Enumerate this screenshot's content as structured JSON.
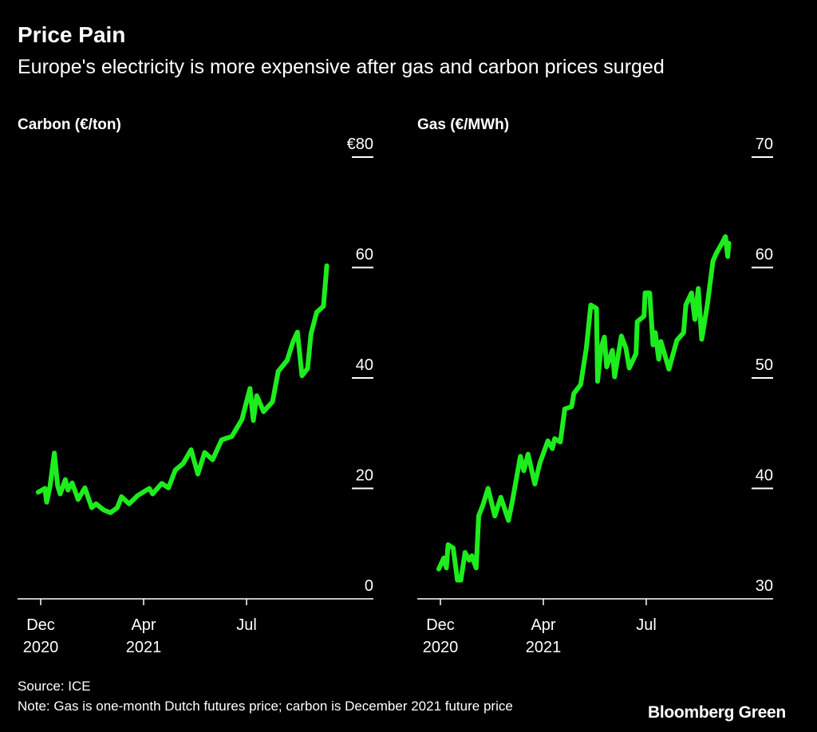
{
  "header": {
    "title": "Price Pain",
    "subtitle": "Europe's electricity is more expensive after gas and carbon prices surged"
  },
  "footer": {
    "source": "Source: ICE",
    "note": "Note: Gas is one-month Dutch futures price; carbon is December 2021 future price",
    "brand": "Bloomberg Green"
  },
  "colors": {
    "line": "#1ded1d",
    "background": "#000000",
    "text": "#ffffff"
  },
  "chart_data": [
    {
      "type": "line",
      "title": "Carbon (€/ton)",
      "ylim": [
        0,
        80
      ],
      "yticks": [
        0,
        20,
        40,
        60,
        80
      ],
      "ytick_labels": [
        "0",
        "20",
        "40",
        "60",
        "€80"
      ],
      "xticks": [
        {
          "date": "2020-12-01",
          "label1": "Dec",
          "label2": "2020"
        },
        {
          "date": "2021-04-01",
          "label1": "Apr",
          "label2": "2021"
        },
        {
          "date": "2021-07-01",
          "label1": "Jul",
          "label2": ""
        }
      ],
      "grid": false,
      "y_axis_side": "right",
      "series": [
        {
          "x": [
            "2020-11-28",
            "2020-12-06",
            "2020-12-08",
            "2020-12-12",
            "2020-12-17",
            "2020-12-21",
            "2020-12-24",
            "2020-12-30",
            "2021-01-02",
            "2021-01-07",
            "2021-01-14",
            "2021-01-22",
            "2021-01-30",
            "2021-02-04",
            "2021-02-13",
            "2021-02-21",
            "2021-03-01",
            "2021-03-06",
            "2021-03-15",
            "2021-03-25",
            "2021-04-06",
            "2021-04-09",
            "2021-04-17",
            "2021-04-23",
            "2021-04-29",
            "2021-05-06",
            "2021-05-13",
            "2021-05-19",
            "2021-05-25",
            "2021-06-01",
            "2021-06-09",
            "2021-06-18",
            "2021-06-27",
            "2021-07-04",
            "2021-07-07",
            "2021-07-10",
            "2021-07-16",
            "2021-07-24",
            "2021-07-29",
            "2021-08-06",
            "2021-08-11",
            "2021-08-15",
            "2021-08-19",
            "2021-08-24",
            "2021-08-27",
            "2021-09-01",
            "2021-09-07",
            "2021-09-10"
          ],
          "y": [
            19.3,
            20,
            17.5,
            20.4,
            26.4,
            20.4,
            19,
            21.6,
            19.7,
            21,
            18,
            20.1,
            16.5,
            17.2,
            16.1,
            15.6,
            16.5,
            18.5,
            17.2,
            18.7,
            20,
            19,
            20.9,
            20.1,
            23.3,
            24.5,
            27,
            22.6,
            26.5,
            25.2,
            28.8,
            29.4,
            32.5,
            38.1,
            32.3,
            36.8,
            33.9,
            35.7,
            41.2,
            43.2,
            46.5,
            48.3,
            40.4,
            41.7,
            48,
            51.9,
            53,
            60.3
          ]
        }
      ]
    },
    {
      "type": "line",
      "title": "Gas (€/MWh)",
      "ylim": [
        30,
        70
      ],
      "yticks": [
        30,
        40,
        50,
        60,
        70
      ],
      "ytick_labels": [
        "30",
        "40",
        "50",
        "60",
        "70"
      ],
      "xticks": [
        {
          "date": "2020-12-01",
          "label1": "Dec",
          "label2": "2020"
        },
        {
          "date": "2021-04-01",
          "label1": "Apr",
          "label2": "2021"
        },
        {
          "date": "2021-07-01",
          "label1": "Jul",
          "label2": ""
        }
      ],
      "grid": false,
      "y_axis_side": "right",
      "series": [
        {
          "x": [
            "2020-11-29",
            "2020-12-05",
            "2020-12-08",
            "2020-12-10",
            "2020-12-16",
            "2020-12-21",
            "2020-12-25",
            "2020-12-30",
            "2021-01-04",
            "2021-01-07",
            "2021-01-12",
            "2021-01-15",
            "2021-01-20",
            "2021-01-26",
            "2021-02-03",
            "2021-02-10",
            "2021-02-19",
            "2021-02-24",
            "2021-03-05",
            "2021-03-09",
            "2021-03-14",
            "2021-03-22",
            "2021-03-28",
            "2021-04-05",
            "2021-04-09",
            "2021-04-11",
            "2021-04-16",
            "2021-04-20",
            "2021-04-26",
            "2021-04-28",
            "2021-05-04",
            "2021-05-09",
            "2021-05-13",
            "2021-05-18",
            "2021-05-19",
            "2021-05-22",
            "2021-05-25",
            "2021-05-27",
            "2021-06-01",
            "2021-06-03",
            "2021-06-09",
            "2021-06-13",
            "2021-06-16",
            "2021-06-22",
            "2021-06-23",
            "2021-06-29",
            "2021-06-30",
            "2021-07-04",
            "2021-07-07",
            "2021-07-09",
            "2021-07-12",
            "2021-07-14",
            "2021-07-21",
            "2021-07-28",
            "2021-08-03",
            "2021-08-05",
            "2021-08-10",
            "2021-08-13",
            "2021-08-16",
            "2021-08-19",
            "2021-08-24",
            "2021-08-29",
            "2021-09-01",
            "2021-09-07",
            "2021-09-09",
            "2021-09-11",
            "2021-09-12"
          ],
          "y": [
            32.7,
            33.7,
            32.8,
            34.9,
            34.6,
            31.7,
            31.7,
            34.2,
            33.5,
            33.9,
            32.8,
            37.5,
            38.5,
            40,
            37.5,
            39.2,
            37.1,
            39,
            42.9,
            41.6,
            43.1,
            40.4,
            42.3,
            44.3,
            43.6,
            44.5,
            44.2,
            47.2,
            47.4,
            48.6,
            49.4,
            52.7,
            56.6,
            56.3,
            49.7,
            52.7,
            53.7,
            51,
            52.5,
            50.1,
            53.8,
            52.7,
            50.9,
            52.2,
            55.1,
            55.6,
            57.7,
            57.7,
            53,
            54.1,
            51.7,
            53.3,
            50.8,
            53.4,
            54.1,
            56.6,
            57.7,
            55.3,
            58.1,
            53.5,
            56.6,
            60.6,
            61.3,
            62.4,
            62.8,
            61,
            62.2
          ]
        }
      ]
    }
  ]
}
